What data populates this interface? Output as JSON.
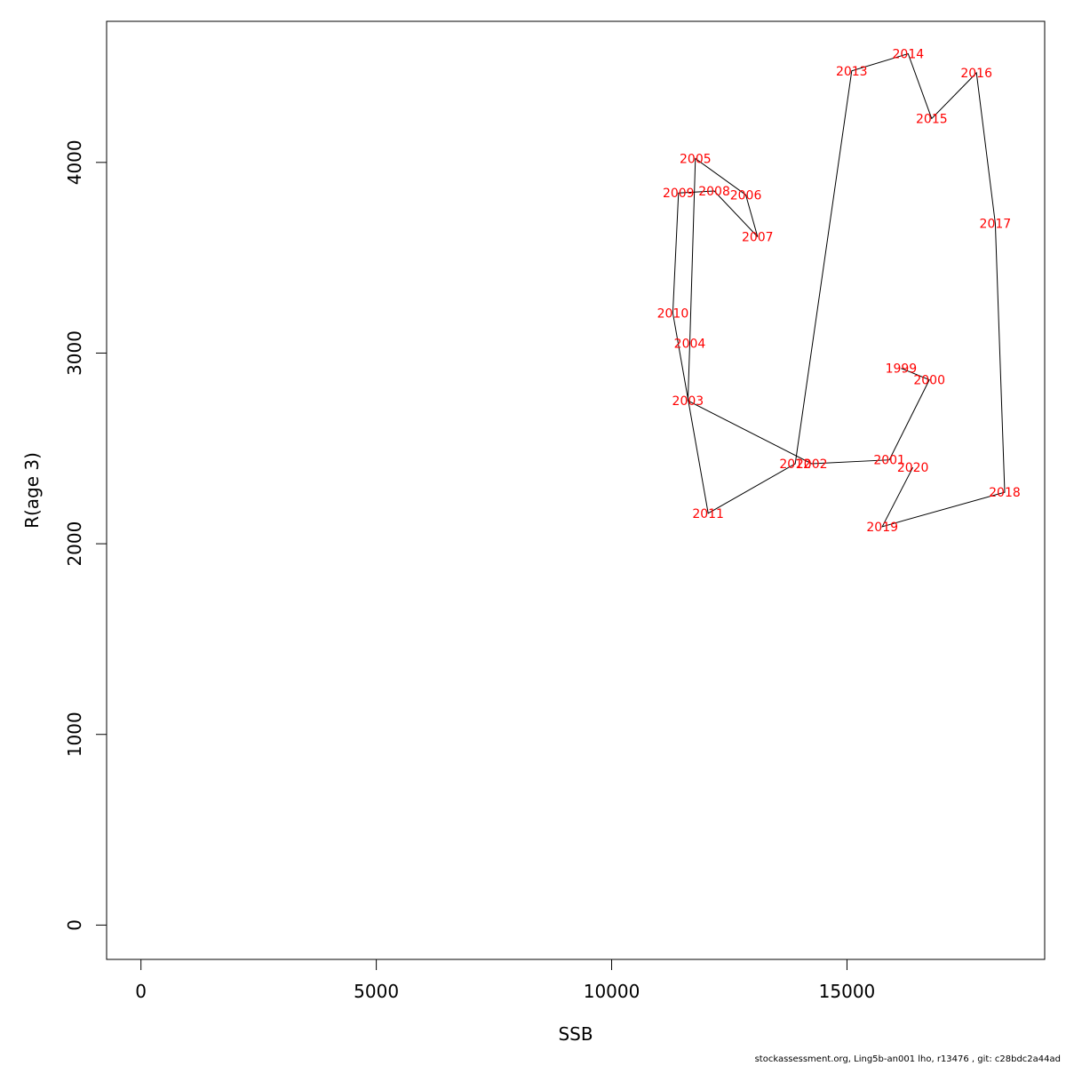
{
  "chart_data": {
    "type": "line",
    "xlabel": "SSB",
    "ylabel": "R(age 3)",
    "xlim": [
      -730,
      19200
    ],
    "ylim": [
      -180,
      4740
    ],
    "xticks": [
      0,
      5000,
      10000,
      15000
    ],
    "yticks": [
      0,
      1000,
      2000,
      3000,
      4000
    ],
    "line_color": "#000000",
    "label_color": "#ff0000",
    "points": [
      {
        "label": "1999",
        "x": 16150,
        "y": 2920
      },
      {
        "label": "2000",
        "x": 16750,
        "y": 2860
      },
      {
        "label": "2001",
        "x": 15900,
        "y": 2440
      },
      {
        "label": "2002",
        "x": 14250,
        "y": 2420
      },
      {
        "label": "2003",
        "x": 11620,
        "y": 2750
      },
      {
        "label": "2004",
        "x": 11660,
        "y": 3050
      },
      {
        "label": "2005",
        "x": 11780,
        "y": 4020
      },
      {
        "label": "2006",
        "x": 12850,
        "y": 3830
      },
      {
        "label": "2007",
        "x": 13100,
        "y": 3610
      },
      {
        "label": "2008",
        "x": 12180,
        "y": 3850
      },
      {
        "label": "2009",
        "x": 11420,
        "y": 3840
      },
      {
        "label": "2010",
        "x": 11300,
        "y": 3210
      },
      {
        "label": "2011",
        "x": 12050,
        "y": 2160
      },
      {
        "label": "2012",
        "x": 13900,
        "y": 2420
      },
      {
        "label": "2013",
        "x": 15100,
        "y": 4480
      },
      {
        "label": "2014",
        "x": 16300,
        "y": 4570
      },
      {
        "label": "2015",
        "x": 16800,
        "y": 4230
      },
      {
        "label": "2016",
        "x": 17750,
        "y": 4470
      },
      {
        "label": "2017",
        "x": 18150,
        "y": 3680
      },
      {
        "label": "2018",
        "x": 18350,
        "y": 2270
      },
      {
        "label": "2019",
        "x": 15750,
        "y": 2090
      },
      {
        "label": "2020",
        "x": 16400,
        "y": 2400
      }
    ]
  },
  "footer": {
    "text": "stockassessment.org, Ling5b-an001  lho, r13476 , git: c28bdc2a44ad"
  }
}
